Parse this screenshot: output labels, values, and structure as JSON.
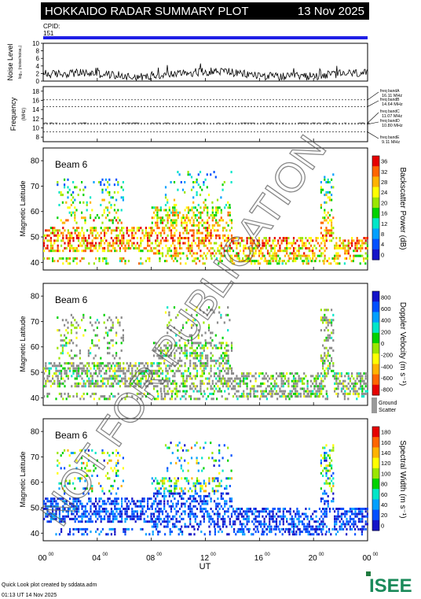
{
  "header": {
    "title": "HOKKAIDO RADAR SUMMARY PLOT",
    "date": "13 Nov 2025",
    "cpid_label": "CPID:",
    "cpid_value": "151",
    "cpid_bar_color": "#1f1fe6"
  },
  "noise_panel": {
    "ylabel": "Noise Level",
    "ysub": "log₁₀ (noise/noise₀)",
    "ticks": [
      "10",
      "8",
      "6",
      "4",
      "2",
      "0"
    ],
    "tick_values": [
      10,
      8,
      6,
      4,
      2,
      0
    ]
  },
  "frequency_panel": {
    "ylabel": "Frequency",
    "yunit": "(MHz)",
    "ticks": [
      "18",
      "16",
      "14",
      "12",
      "10",
      "8"
    ],
    "tick_values": [
      18,
      16,
      14,
      12,
      10,
      8
    ],
    "bands": [
      {
        "label": "freq bandA",
        "value_text": "16.11 MHz",
        "mhz": 16.11
      },
      {
        "label": "freq bandB",
        "value_text": "14.64 MHz",
        "mhz": 14.64
      },
      {
        "label": "freq bandC",
        "value_text": "11.07 MHz",
        "mhz": 11.07
      },
      {
        "label": "freq bandD",
        "value_text": "10.80 MHz",
        "mhz": 10.8
      },
      {
        "label": "freq bandE",
        "value_text": "9.11 MHz",
        "mhz": 9.11
      }
    ]
  },
  "beam_panels": [
    {
      "beam_label": "Beam  6",
      "ylabel": "Magnetic Latitude",
      "yticks": [
        "80",
        "70",
        "60",
        "50",
        "40"
      ],
      "colorbar_label": "Backscatter Power (dB)",
      "colorbar_ticks": [
        "36",
        "32",
        "28",
        "24",
        "20",
        "16",
        "12",
        "8",
        "4",
        "0"
      ],
      "colorbar_colors": [
        "#e60000",
        "#ff6600",
        "#ffb300",
        "#ffff00",
        "#9be600",
        "#00d200",
        "#00e6c8",
        "#00a0ff",
        "#0050ff",
        "#1414c8"
      ],
      "ground_scatter": false
    },
    {
      "beam_label": "Beam  6",
      "ylabel": "Magnetic Latitude",
      "yticks": [
        "80",
        "70",
        "60",
        "50",
        "40"
      ],
      "colorbar_label": "Doppler Velocity (m s⁻¹)",
      "colorbar_ticks": [
        "800",
        "600",
        "400",
        "200",
        "0",
        "-200",
        "-400",
        "-600",
        "-800"
      ],
      "colorbar_colors": [
        "#1414c8",
        "#0050ff",
        "#00a0ff",
        "#00e6c8",
        "#00d200",
        "#9be600",
        "#ffff00",
        "#ffb300",
        "#ff6600",
        "#e60000"
      ],
      "ground_scatter": true,
      "ground_label_1": "Ground",
      "ground_label_2": "Scatter"
    },
    {
      "beam_label": "Beam  6",
      "ylabel": "Magnetic Latitude",
      "yticks": [
        "80",
        "70",
        "60",
        "50",
        "40"
      ],
      "colorbar_label": "Spectral Width (m s⁻¹)",
      "colorbar_ticks": [
        "180",
        "160",
        "140",
        "120",
        "100",
        "80",
        "60",
        "40",
        "20",
        "0"
      ],
      "colorbar_colors": [
        "#e60000",
        "#ff6600",
        "#ffb300",
        "#ffff00",
        "#9be600",
        "#00d200",
        "#00e6c8",
        "#00a0ff",
        "#0050ff",
        "#1414c8"
      ],
      "ground_scatter": false
    }
  ],
  "xaxis": {
    "label": "UT",
    "ticks": [
      {
        "h": "00",
        "m": "00"
      },
      {
        "h": "04",
        "m": "00"
      },
      {
        "h": "08",
        "m": "00"
      },
      {
        "h": "12",
        "m": "00"
      },
      {
        "h": "16",
        "m": "00"
      },
      {
        "h": "20",
        "m": "00"
      },
      {
        "h": "00",
        "m": "00"
      }
    ]
  },
  "footer": {
    "credit": "Quick Look plot created by sddata.adm",
    "timestamp": "01:13 UT 14 Nov 2025",
    "logo_text": "ISEE"
  },
  "watermark": "NOT FOR PUBLICATION",
  "chart_data": {
    "type": "heatmap",
    "title": "HOKKAIDO RADAR SUMMARY PLOT",
    "x_range_ut_hours": [
      0,
      24
    ],
    "y_range_mlat": [
      37,
      85
    ],
    "noise_ylim": [
      0,
      10
    ],
    "frequency_ylim": [
      7,
      19
    ],
    "xlabel": "UT",
    "ylabel": "Magnetic Latitude"
  }
}
